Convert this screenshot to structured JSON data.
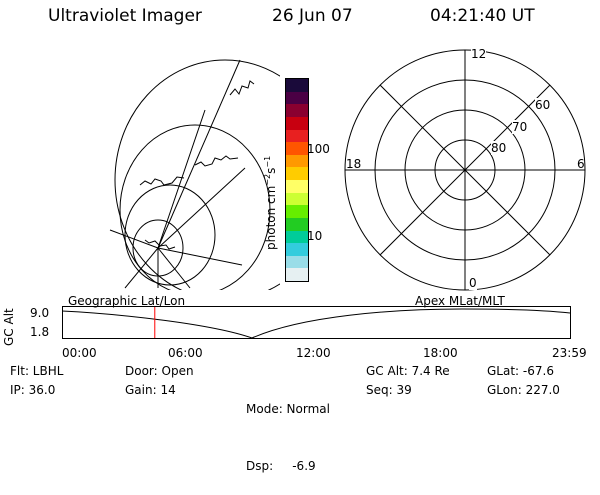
{
  "header": {
    "instrument": "Ultraviolet Imager",
    "date": "26 Jun 07",
    "time": "04:21:40 UT"
  },
  "colorbar": {
    "unit_prefix": "photon cm",
    "unit_exp1": "−2",
    "unit_mid": "s",
    "unit_exp2": "−1",
    "ticks": [
      {
        "label": "100",
        "value": 100
      },
      {
        "label": "10",
        "value": 10
      }
    ],
    "colors": [
      "#1a0a3a",
      "#4a0044",
      "#8a0030",
      "#c80010",
      "#e82020",
      "#ff5500",
      "#ff9900",
      "#ffcc00",
      "#ffff66",
      "#ccff33",
      "#66ee00",
      "#22cc22",
      "#00cc99",
      "#33ccdd",
      "#99dde8",
      "#e6f0f2"
    ]
  },
  "polar_plot": {
    "labels": {
      "top": "12",
      "bottom": "0",
      "left": "18",
      "right": "6"
    },
    "rings": [
      "60",
      "70",
      "80"
    ]
  },
  "timeline": {
    "axis_label": "GC Alt",
    "y_ticks": [
      "9.0",
      "1.8"
    ],
    "left_title": "Geographic Lat/Lon",
    "right_title": "Apex MLat/MLT",
    "x_ticks": [
      "00:00",
      "06:00",
      "12:00",
      "18:00",
      "23:59"
    ],
    "current_hour": 4.36,
    "marker_color": "#ff0000"
  },
  "info": {
    "col1": [
      "Flt: LBHL",
      "IP: 36.0"
    ],
    "col2": [
      "Door: Open",
      "Gain: 14"
    ],
    "col3": [
      "Mode: Normal",
      "Dsp:     -6.9"
    ],
    "col4": [
      "GC Alt: 7.4 Re",
      "Seq: 39"
    ],
    "col5": [
      "GLat: -67.6",
      "GLon: 227.0"
    ]
  }
}
